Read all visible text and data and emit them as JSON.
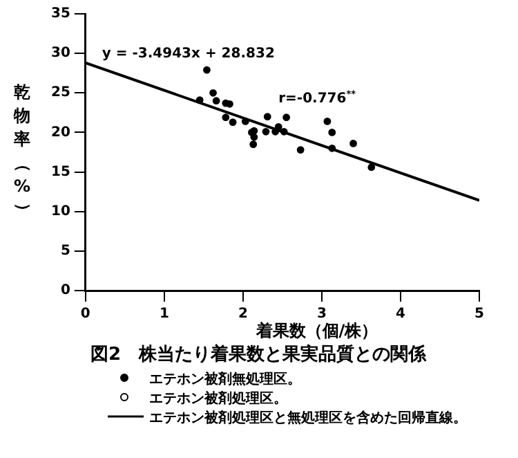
{
  "chart_data": {
    "type": "scatter",
    "title": "図2　株当たり着果数と果実品質との関係",
    "xlabel": "着果数（個/株）",
    "ylabel": "乾物率（%）",
    "xlim": [
      0,
      5
    ],
    "xticks": [
      0,
      1,
      2,
      3,
      4,
      5
    ],
    "ylim": [
      0,
      35
    ],
    "yticks": [
      0,
      5,
      10,
      15,
      20,
      25,
      30,
      35
    ],
    "grid": false,
    "legend": "bottom",
    "annotations": [
      "y = -3.4943x + 28.832",
      "r=-0.776$^{**}$"
    ],
    "series": [
      {
        "name": "エテホン被剤無処理区。",
        "color": "#000000",
        "marker": "circle",
        "x": [
          1.45,
          1.54,
          1.62,
          1.66,
          1.78,
          1.83,
          1.78,
          1.87,
          2.03,
          2.11,
          2.14,
          2.14,
          2.13,
          2.31,
          2.29,
          2.45,
          2.41,
          2.55,
          2.52,
          2.73,
          3.07,
          3.13,
          3.13,
          3.4,
          3.63
        ],
        "values": [
          24.1,
          27.9,
          25.0,
          24.0,
          23.7,
          23.6,
          21.9,
          21.3,
          21.4,
          20.0,
          20.2,
          19.4,
          18.5,
          22.0,
          20.1,
          20.7,
          20.1,
          21.9,
          20.1,
          17.8,
          21.4,
          20.0,
          18.0,
          18.6,
          15.6
        ]
      },
      {
        "name": "エテホン被剤処理区。",
        "color": "#000000",
        "marker": "circle_open"
      },
      {
        "name": "エテホン被剤処理区と無処理区を含めた回帰直線。",
        "type": "line",
        "color": "#000000",
        "marker": "none",
        "x": [
          0,
          5
        ],
        "values": [
          28.8,
          11.4
        ]
      }
    ]
  }
}
